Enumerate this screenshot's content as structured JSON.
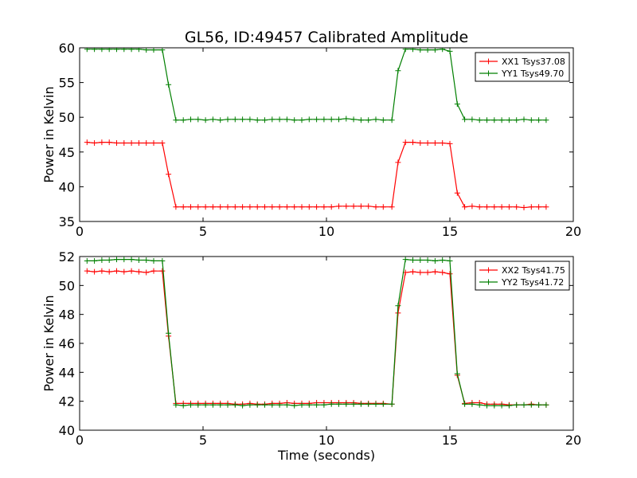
{
  "chart_data": {
    "title": "GL56, ID:49457 Calibrated Amplitude",
    "colors": {
      "red": "#ff0000",
      "green": "#007f00"
    },
    "panels": [
      {
        "type": "line",
        "xlabel": "",
        "ylabel": "Power in Kelvin",
        "xlim": [
          0,
          20
        ],
        "ylim": [
          35,
          60
        ],
        "xticks": [
          "0",
          "5",
          "10",
          "15",
          "20"
        ],
        "yticks": [
          "35",
          "40",
          "45",
          "50",
          "55",
          "60"
        ],
        "legend_position": "top-right",
        "x": [
          0.3,
          0.6,
          0.9,
          1.2,
          1.5,
          1.8,
          2.1,
          2.4,
          2.7,
          3.0,
          3.35,
          3.6,
          3.9,
          4.2,
          4.5,
          4.8,
          5.1,
          5.4,
          5.7,
          6.0,
          6.3,
          6.6,
          6.9,
          7.2,
          7.5,
          7.8,
          8.1,
          8.4,
          8.7,
          9.0,
          9.3,
          9.6,
          9.9,
          10.2,
          10.5,
          10.8,
          11.1,
          11.4,
          11.7,
          12.0,
          12.3,
          12.65,
          12.9,
          13.2,
          13.5,
          13.8,
          14.1,
          14.4,
          14.7,
          15.0,
          15.3,
          15.6,
          15.9,
          16.2,
          16.5,
          16.8,
          17.1,
          17.4,
          17.7,
          18.0,
          18.3,
          18.6,
          18.9
        ],
        "series": [
          {
            "name": "XX1 Tsys37.08",
            "color": "#ff0000",
            "values": [
              46.4,
              46.3,
              46.4,
              46.4,
              46.3,
              46.3,
              46.3,
              46.3,
              46.3,
              46.3,
              46.3,
              41.8,
              37.1,
              37.1,
              37.1,
              37.1,
              37.1,
              37.1,
              37.1,
              37.1,
              37.1,
              37.1,
              37.1,
              37.1,
              37.1,
              37.1,
              37.1,
              37.1,
              37.1,
              37.1,
              37.1,
              37.1,
              37.1,
              37.1,
              37.2,
              37.2,
              37.2,
              37.2,
              37.2,
              37.1,
              37.1,
              37.1,
              43.5,
              46.4,
              46.4,
              46.3,
              46.3,
              46.3,
              46.3,
              46.2,
              39.1,
              37.1,
              37.2,
              37.1,
              37.1,
              37.1,
              37.1,
              37.1,
              37.1,
              37.0,
              37.1,
              37.1,
              37.1
            ]
          },
          {
            "name": "YY1 Tsys49.70",
            "color": "#007f00",
            "values": [
              59.8,
              59.8,
              59.8,
              59.8,
              59.8,
              59.8,
              59.8,
              59.8,
              59.7,
              59.7,
              59.7,
              54.7,
              49.6,
              49.6,
              49.7,
              49.7,
              49.6,
              49.7,
              49.6,
              49.7,
              49.7,
              49.7,
              49.7,
              49.6,
              49.6,
              49.7,
              49.7,
              49.7,
              49.6,
              49.6,
              49.7,
              49.7,
              49.7,
              49.7,
              49.7,
              49.8,
              49.7,
              49.6,
              49.6,
              49.7,
              49.6,
              49.6,
              56.7,
              59.8,
              59.8,
              59.7,
              59.7,
              59.7,
              59.8,
              59.5,
              51.9,
              49.7,
              49.7,
              49.6,
              49.6,
              49.6,
              49.6,
              49.6,
              49.6,
              49.7,
              49.6,
              49.6,
              49.6
            ]
          }
        ]
      },
      {
        "type": "line",
        "xlabel": "Time (seconds)",
        "ylabel": "Power in Kelvin",
        "xlim": [
          0,
          20
        ],
        "ylim": [
          40,
          52
        ],
        "xticks": [
          "0",
          "5",
          "10",
          "15",
          "20"
        ],
        "yticks": [
          "40",
          "42",
          "44",
          "46",
          "48",
          "50",
          "52"
        ],
        "legend_position": "top-right",
        "x": [
          0.3,
          0.6,
          0.9,
          1.2,
          1.5,
          1.8,
          2.1,
          2.4,
          2.7,
          3.0,
          3.35,
          3.6,
          3.9,
          4.2,
          4.5,
          4.8,
          5.1,
          5.4,
          5.7,
          6.0,
          6.3,
          6.6,
          6.9,
          7.2,
          7.5,
          7.8,
          8.1,
          8.4,
          8.7,
          9.0,
          9.3,
          9.6,
          9.9,
          10.2,
          10.5,
          10.8,
          11.1,
          11.4,
          11.7,
          12.0,
          12.3,
          12.65,
          12.9,
          13.2,
          13.5,
          13.8,
          14.1,
          14.4,
          14.7,
          15.0,
          15.3,
          15.6,
          15.9,
          16.2,
          16.5,
          16.8,
          17.1,
          17.4,
          17.7,
          18.0,
          18.3,
          18.6,
          18.9
        ],
        "series": [
          {
            "name": "XX2 Tsys41.75",
            "color": "#ff0000",
            "values": [
              51.0,
              50.95,
              51.0,
              50.95,
              51.0,
              50.95,
              51.0,
              50.95,
              50.9,
              51.0,
              51.0,
              46.5,
              41.85,
              41.85,
              41.85,
              41.85,
              41.85,
              41.85,
              41.85,
              41.85,
              41.8,
              41.8,
              41.85,
              41.8,
              41.8,
              41.85,
              41.85,
              41.9,
              41.85,
              41.85,
              41.85,
              41.9,
              41.9,
              41.9,
              41.9,
              41.9,
              41.9,
              41.85,
              41.85,
              41.85,
              41.85,
              41.8,
              48.1,
              50.9,
              50.95,
              50.9,
              50.9,
              50.95,
              50.9,
              50.8,
              43.8,
              41.85,
              41.9,
              41.9,
              41.8,
              41.8,
              41.8,
              41.75,
              41.75,
              41.75,
              41.8,
              41.75,
              41.75
            ]
          },
          {
            "name": "YY2 Tsys41.72",
            "color": "#007f00",
            "values": [
              51.7,
              51.7,
              51.75,
              51.75,
              51.8,
              51.8,
              51.8,
              51.75,
              51.75,
              51.7,
              51.7,
              46.7,
              41.75,
              41.7,
              41.75,
              41.75,
              41.75,
              41.75,
              41.75,
              41.75,
              41.75,
              41.7,
              41.75,
              41.75,
              41.75,
              41.75,
              41.75,
              41.75,
              41.7,
              41.75,
              41.75,
              41.75,
              41.75,
              41.8,
              41.8,
              41.8,
              41.8,
              41.8,
              41.8,
              41.8,
              41.8,
              41.8,
              48.6,
              51.8,
              51.75,
              51.75,
              51.75,
              51.7,
              51.75,
              51.7,
              43.9,
              41.8,
              41.8,
              41.75,
              41.7,
              41.7,
              41.7,
              41.7,
              41.75,
              41.75,
              41.75,
              41.75,
              41.75
            ]
          }
        ]
      }
    ]
  }
}
